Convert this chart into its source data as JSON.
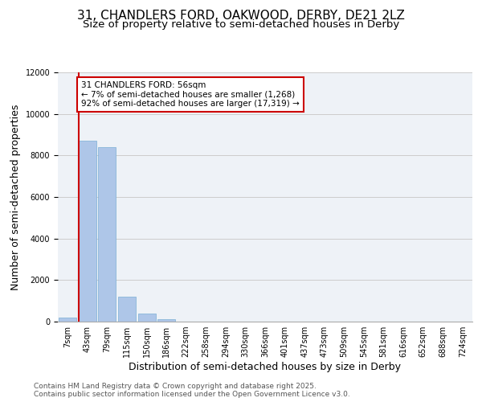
{
  "title_line1": "31, CHANDLERS FORD, OAKWOOD, DERBY, DE21 2LZ",
  "title_line2": "Size of property relative to semi-detached houses in Derby",
  "xlabel": "Distribution of semi-detached houses by size in Derby",
  "ylabel": "Number of semi-detached properties",
  "footnote": "Contains HM Land Registry data © Crown copyright and database right 2025.\nContains public sector information licensed under the Open Government Licence v3.0.",
  "categories": [
    "7sqm",
    "43sqm",
    "79sqm",
    "115sqm",
    "150sqm",
    "186sqm",
    "222sqm",
    "258sqm",
    "294sqm",
    "330sqm",
    "366sqm",
    "401sqm",
    "437sqm",
    "473sqm",
    "509sqm",
    "545sqm",
    "581sqm",
    "616sqm",
    "652sqm",
    "688sqm",
    "724sqm"
  ],
  "values": [
    200,
    8700,
    8400,
    1200,
    400,
    100,
    0,
    0,
    0,
    0,
    0,
    0,
    0,
    0,
    0,
    0,
    0,
    0,
    0,
    0,
    0
  ],
  "bar_color": "#AEC6E8",
  "bar_edge_color": "#7aafd4",
  "property_index": 1,
  "property_label": "31 CHANDLERS FORD: 56sqm",
  "pct_smaller": 7,
  "n_smaller": 1268,
  "pct_larger": 92,
  "n_larger": 17319,
  "annotation_box_color": "#cc0000",
  "red_line_color": "#cc0000",
  "ylim": [
    0,
    12000
  ],
  "yticks": [
    0,
    2000,
    4000,
    6000,
    8000,
    10000,
    12000
  ],
  "grid_color": "#cccccc",
  "background_color": "#eef2f7",
  "title_fontsize": 11,
  "subtitle_fontsize": 9.5,
  "axis_label_fontsize": 9,
  "tick_fontsize": 7,
  "annotation_fontsize": 7.5,
  "footnote_fontsize": 6.5
}
